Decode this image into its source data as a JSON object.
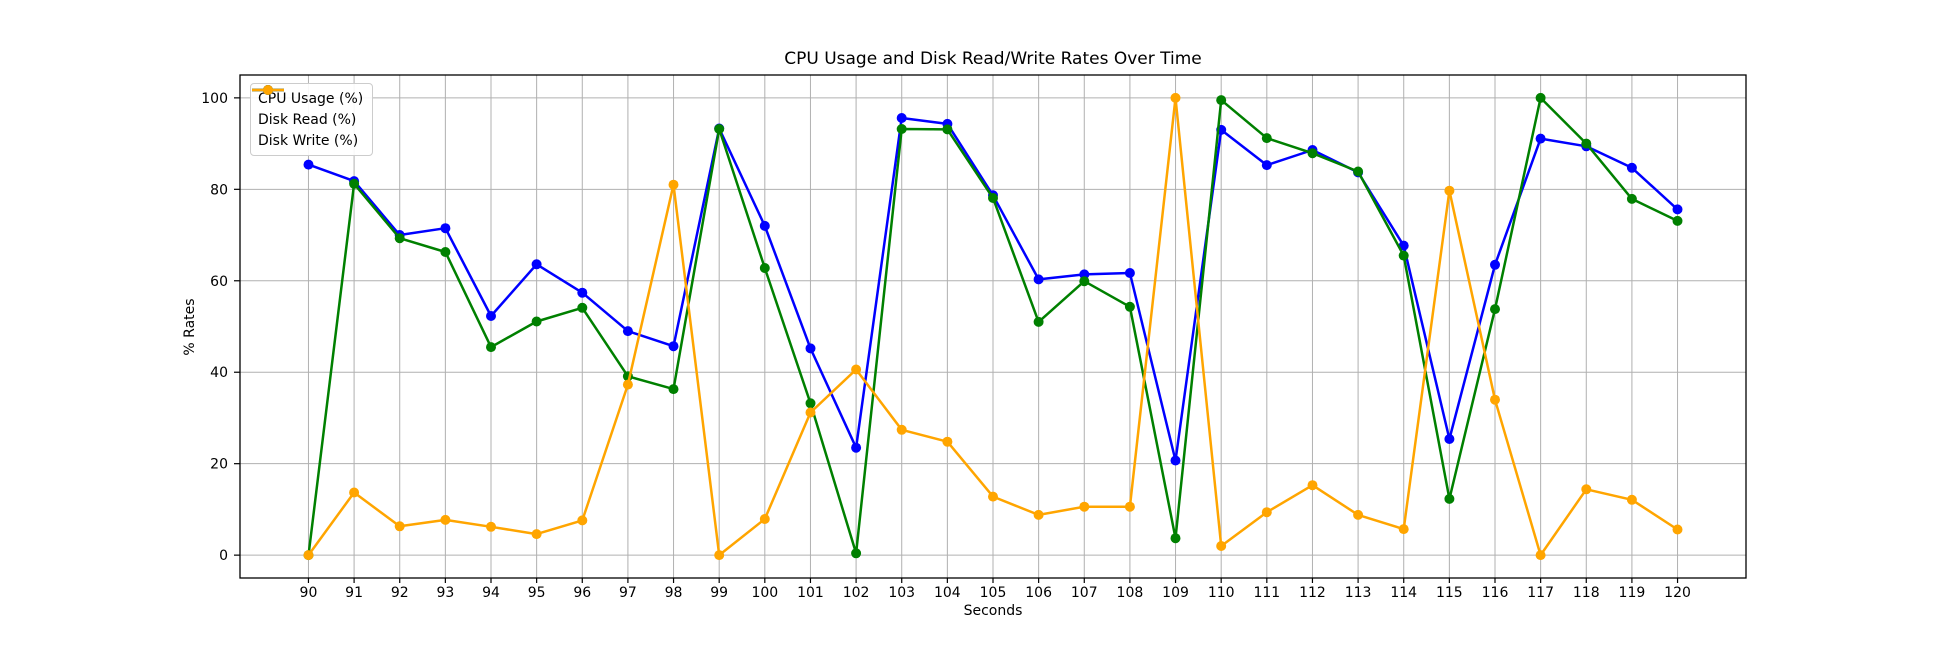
{
  "chart_data": {
    "type": "line",
    "title": "CPU Usage and Disk Read/Write Rates Over Time",
    "xlabel": "Seconds",
    "ylabel": "% Rates",
    "x": [
      90,
      91,
      92,
      93,
      94,
      95,
      96,
      97,
      98,
      99,
      100,
      101,
      102,
      103,
      104,
      105,
      106,
      107,
      108,
      109,
      110,
      111,
      112,
      113,
      114,
      115,
      116,
      117,
      118,
      119,
      120
    ],
    "xticks": [
      90,
      91,
      92,
      93,
      94,
      95,
      96,
      97,
      98,
      99,
      100,
      101,
      102,
      103,
      104,
      105,
      106,
      107,
      108,
      109,
      110,
      111,
      112,
      113,
      114,
      115,
      116,
      117,
      118,
      119,
      120
    ],
    "yticks": [
      0,
      20,
      40,
      60,
      80,
      100
    ],
    "xlim": [
      88.5,
      121.5
    ],
    "ylim": [
      -5,
      105
    ],
    "grid": true,
    "grid_color": "#b0b0b0",
    "legend_position": "upper left",
    "series": [
      {
        "name": "CPU Usage (%)",
        "color": "#0000ff",
        "marker": "circle",
        "values": [
          85.4,
          81.8,
          70.0,
          71.5,
          52.3,
          63.6,
          57.4,
          49.0,
          45.7,
          93.3,
          72.0,
          45.2,
          23.5,
          95.6,
          94.3,
          78.7,
          60.3,
          61.4,
          61.7,
          20.7,
          93.0,
          85.3,
          88.6,
          83.7,
          67.7,
          25.4,
          63.5,
          91.1,
          89.4,
          84.7,
          75.6
        ]
      },
      {
        "name": "Disk Read (%)",
        "color": "#008000",
        "marker": "circle",
        "values": [
          0.0,
          81.2,
          69.3,
          66.3,
          45.5,
          51.1,
          54.1,
          39.1,
          36.3,
          93.2,
          62.8,
          33.2,
          0.4,
          93.2,
          93.1,
          78.1,
          51.0,
          59.9,
          54.3,
          3.7,
          99.5,
          91.2,
          87.9,
          83.9,
          65.5,
          12.3,
          53.8,
          100.0,
          90.0,
          77.9,
          73.1
        ]
      },
      {
        "name": "Disk Write (%)",
        "color": "#ffa500",
        "marker": "circle",
        "values": [
          0.0,
          13.7,
          6.3,
          7.7,
          6.2,
          4.6,
          7.6,
          37.3,
          81.0,
          0.0,
          7.9,
          31.2,
          40.6,
          27.4,
          24.8,
          12.8,
          8.8,
          10.6,
          10.6,
          100.0,
          2.0,
          9.4,
          15.3,
          8.8,
          5.7,
          79.7,
          34.0,
          0.0,
          14.4,
          12.1,
          5.6
        ]
      }
    ]
  }
}
